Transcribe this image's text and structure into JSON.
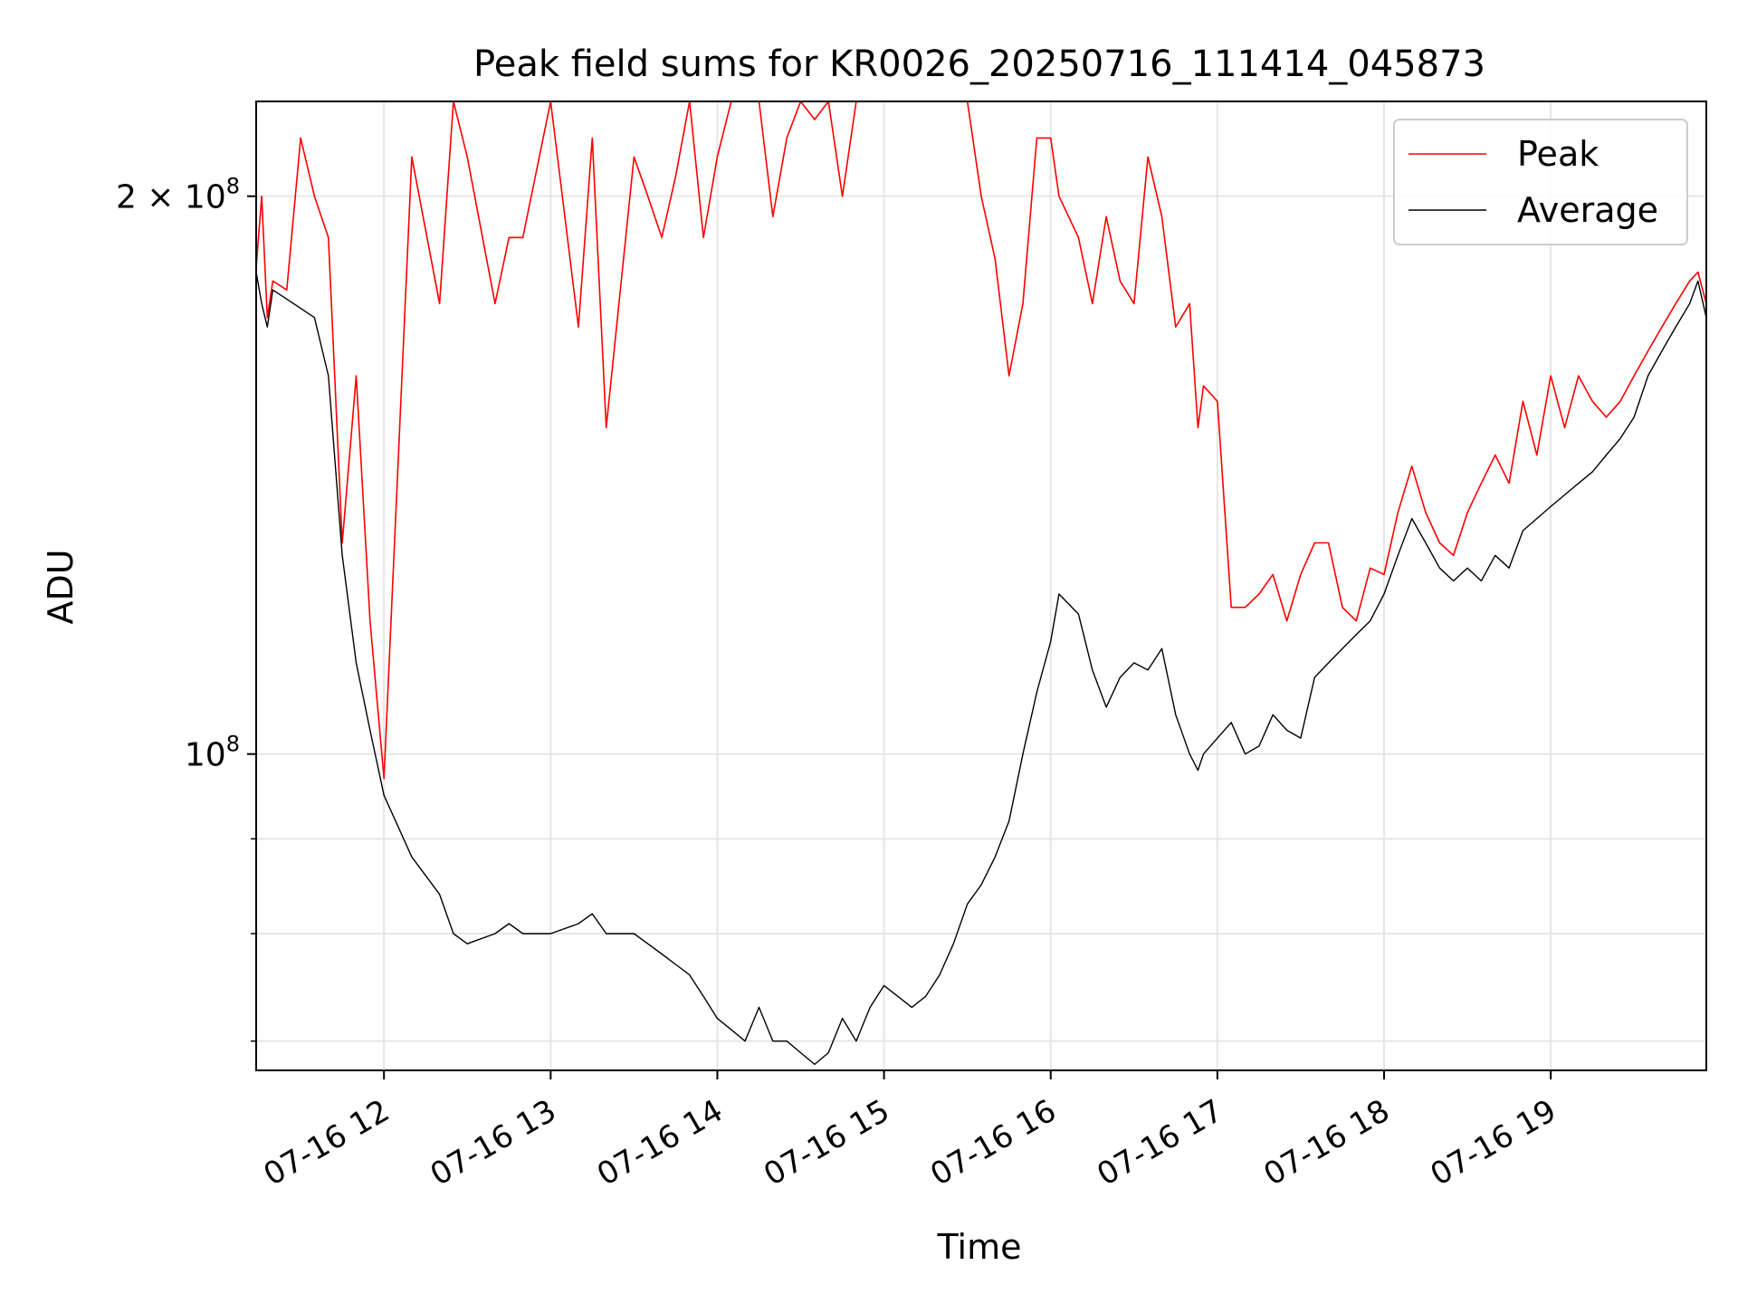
{
  "chart_data": {
    "type": "line",
    "title": "Peak field sums for KR0026_20250716_111414_045873",
    "xlabel": "Time",
    "ylabel": "ADU",
    "xlim": [
      "2025-07-16 11:14",
      "2025-07-16 19:56"
    ],
    "ylim": [
      67500000,
      225000000
    ],
    "y_scale": "log",
    "grid": true,
    "legend_position": "top-right",
    "x_ticks": [
      {
        "value": "2025-07-16 12:00",
        "label": "07-16 12"
      },
      {
        "value": "2025-07-16 13:00",
        "label": "07-16 13"
      },
      {
        "value": "2025-07-16 14:00",
        "label": "07-16 14"
      },
      {
        "value": "2025-07-16 15:00",
        "label": "07-16 15"
      },
      {
        "value": "2025-07-16 16:00",
        "label": "07-16 16"
      },
      {
        "value": "2025-07-16 17:00",
        "label": "07-16 17"
      },
      {
        "value": "2025-07-16 18:00",
        "label": "07-16 18"
      },
      {
        "value": "2025-07-16 19:00",
        "label": "07-16 19"
      }
    ],
    "y_ticks": [
      {
        "value": 100000000,
        "base": "10",
        "exp": "8"
      },
      {
        "value": 200000000,
        "base": "2 × 10",
        "exp": "8"
      }
    ],
    "y_minor_ticks": [
      70000000,
      80000000,
      90000000
    ],
    "series": [
      {
        "name": "Average",
        "color": "#000000",
        "x": [
          "2025-07-16 11:14",
          "2025-07-16 11:16",
          "2025-07-16 11:18",
          "2025-07-16 11:20",
          "2025-07-16 11:25",
          "2025-07-16 11:30",
          "2025-07-16 11:35",
          "2025-07-16 11:40",
          "2025-07-16 11:45",
          "2025-07-16 11:50",
          "2025-07-16 11:55",
          "2025-07-16 12:00",
          "2025-07-16 12:10",
          "2025-07-16 12:20",
          "2025-07-16 12:25",
          "2025-07-16 12:30",
          "2025-07-16 12:40",
          "2025-07-16 12:45",
          "2025-07-16 12:50",
          "2025-07-16 13:00",
          "2025-07-16 13:10",
          "2025-07-16 13:15",
          "2025-07-16 13:20",
          "2025-07-16 13:30",
          "2025-07-16 13:35",
          "2025-07-16 13:40",
          "2025-07-16 13:45",
          "2025-07-16 13:50",
          "2025-07-16 13:55",
          "2025-07-16 14:00",
          "2025-07-16 14:05",
          "2025-07-16 14:10",
          "2025-07-16 14:15",
          "2025-07-16 14:20",
          "2025-07-16 14:25",
          "2025-07-16 14:30",
          "2025-07-16 14:35",
          "2025-07-16 14:40",
          "2025-07-16 14:45",
          "2025-07-16 14:50",
          "2025-07-16 14:55",
          "2025-07-16 15:00",
          "2025-07-16 15:05",
          "2025-07-16 15:10",
          "2025-07-16 15:15",
          "2025-07-16 15:20",
          "2025-07-16 15:25",
          "2025-07-16 15:30",
          "2025-07-16 15:35",
          "2025-07-16 15:40",
          "2025-07-16 15:45",
          "2025-07-16 15:50",
          "2025-07-16 15:55",
          "2025-07-16 16:00",
          "2025-07-16 16:03",
          "2025-07-16 16:10",
          "2025-07-16 16:15",
          "2025-07-16 16:20",
          "2025-07-16 16:25",
          "2025-07-16 16:30",
          "2025-07-16 16:35",
          "2025-07-16 16:40",
          "2025-07-16 16:45",
          "2025-07-16 16:50",
          "2025-07-16 16:53",
          "2025-07-16 16:55",
          "2025-07-16 17:00",
          "2025-07-16 17:05",
          "2025-07-16 17:10",
          "2025-07-16 17:15",
          "2025-07-16 17:20",
          "2025-07-16 17:25",
          "2025-07-16 17:30",
          "2025-07-16 17:35",
          "2025-07-16 17:40",
          "2025-07-16 17:45",
          "2025-07-16 17:50",
          "2025-07-16 17:55",
          "2025-07-16 18:00",
          "2025-07-16 18:05",
          "2025-07-16 18:10",
          "2025-07-16 18:15",
          "2025-07-16 18:20",
          "2025-07-16 18:25",
          "2025-07-16 18:30",
          "2025-07-16 18:35",
          "2025-07-16 18:40",
          "2025-07-16 18:45",
          "2025-07-16 18:50",
          "2025-07-16 18:55",
          "2025-07-16 19:00",
          "2025-07-16 19:05",
          "2025-07-16 19:10",
          "2025-07-16 19:15",
          "2025-07-16 19:20",
          "2025-07-16 19:25",
          "2025-07-16 19:30",
          "2025-07-16 19:35",
          "2025-07-16 19:40",
          "2025-07-16 19:45",
          "2025-07-16 19:50",
          "2025-07-16 19:53",
          "2025-07-16 19:56"
        ],
        "values": [
          182000000,
          175000000,
          170000000,
          178000000,
          176000000,
          174000000,
          172000000,
          160000000,
          128000000,
          112000000,
          103000000,
          95000000,
          88000000,
          84000000,
          80000000,
          79000000,
          80000000,
          81000000,
          80000000,
          80000000,
          81000000,
          82000000,
          80000000,
          80000000,
          79000000,
          78000000,
          77000000,
          76000000,
          74000000,
          72000000,
          71000000,
          70000000,
          73000000,
          70000000,
          70000000,
          69000000,
          68000000,
          69000000,
          72000000,
          70000000,
          73000000,
          75000000,
          74000000,
          73000000,
          74000000,
          76000000,
          79000000,
          83000000,
          85000000,
          88000000,
          92000000,
          100000000,
          108000000,
          115000000,
          122000000,
          119000000,
          111000000,
          106000000,
          110000000,
          112000000,
          111000000,
          114000000,
          105000000,
          100000000,
          98000000,
          100000000,
          102000000,
          104000000,
          100000000,
          101000000,
          105000000,
          103000000,
          102000000,
          110000000,
          112000000,
          114000000,
          116000000,
          118000000,
          122000000,
          128000000,
          134000000,
          130000000,
          126000000,
          124000000,
          126000000,
          124000000,
          128000000,
          126000000,
          132000000,
          134000000,
          136000000,
          138000000,
          140000000,
          142000000,
          145000000,
          148000000,
          152000000,
          160000000,
          165000000,
          170000000,
          175000000,
          180000000,
          172000000
        ]
      },
      {
        "name": "Peak",
        "color": "#ff0000",
        "x": [
          "2025-07-16 11:14",
          "2025-07-16 11:16",
          "2025-07-16 11:18",
          "2025-07-16 11:20",
          "2025-07-16 11:25",
          "2025-07-16 11:30",
          "2025-07-16 11:35",
          "2025-07-16 11:40",
          "2025-07-16 11:45",
          "2025-07-16 11:50",
          "2025-07-16 11:55",
          "2025-07-16 12:00",
          "2025-07-16 12:10",
          "2025-07-16 12:20",
          "2025-07-16 12:25",
          "2025-07-16 12:30",
          "2025-07-16 12:40",
          "2025-07-16 12:45",
          "2025-07-16 12:50",
          "2025-07-16 13:00",
          "2025-07-16 13:10",
          "2025-07-16 13:15",
          "2025-07-16 13:20",
          "2025-07-16 13:30",
          "2025-07-16 13:35",
          "2025-07-16 13:40",
          "2025-07-16 13:45",
          "2025-07-16 13:50",
          "2025-07-16 13:55",
          "2025-07-16 14:00",
          "2025-07-16 14:05",
          "2025-07-16 14:10",
          "2025-07-16 14:15",
          "2025-07-16 14:20",
          "2025-07-16 14:25",
          "2025-07-16 14:30",
          "2025-07-16 14:35",
          "2025-07-16 14:40",
          "2025-07-16 14:45",
          "2025-07-16 14:50",
          "2025-07-16 14:55",
          "2025-07-16 15:00",
          "2025-07-16 15:05",
          "2025-07-16 15:10",
          "2025-07-16 15:15",
          "2025-07-16 15:20",
          "2025-07-16 15:25",
          "2025-07-16 15:30",
          "2025-07-16 15:35",
          "2025-07-16 15:40",
          "2025-07-16 15:45",
          "2025-07-16 15:50",
          "2025-07-16 15:55",
          "2025-07-16 16:00",
          "2025-07-16 16:03",
          "2025-07-16 16:10",
          "2025-07-16 16:15",
          "2025-07-16 16:20",
          "2025-07-16 16:25",
          "2025-07-16 16:30",
          "2025-07-16 16:35",
          "2025-07-16 16:40",
          "2025-07-16 16:45",
          "2025-07-16 16:50",
          "2025-07-16 16:53",
          "2025-07-16 16:55",
          "2025-07-16 17:00",
          "2025-07-16 17:05",
          "2025-07-16 17:10",
          "2025-07-16 17:15",
          "2025-07-16 17:20",
          "2025-07-16 17:25",
          "2025-07-16 17:30",
          "2025-07-16 17:35",
          "2025-07-16 17:40",
          "2025-07-16 17:45",
          "2025-07-16 17:50",
          "2025-07-16 17:55",
          "2025-07-16 18:00",
          "2025-07-16 18:05",
          "2025-07-16 18:10",
          "2025-07-16 18:15",
          "2025-07-16 18:20",
          "2025-07-16 18:25",
          "2025-07-16 18:30",
          "2025-07-16 18:35",
          "2025-07-16 18:40",
          "2025-07-16 18:45",
          "2025-07-16 18:50",
          "2025-07-16 18:55",
          "2025-07-16 19:00",
          "2025-07-16 19:05",
          "2025-07-16 19:10",
          "2025-07-16 19:15",
          "2025-07-16 19:20",
          "2025-07-16 19:25",
          "2025-07-16 19:30",
          "2025-07-16 19:35",
          "2025-07-16 19:40",
          "2025-07-16 19:45",
          "2025-07-16 19:50",
          "2025-07-16 19:53",
          "2025-07-16 19:56"
        ],
        "values": [
          183000000,
          200000000,
          172000000,
          180000000,
          178000000,
          215000000,
          200000000,
          190000000,
          130000000,
          160000000,
          118000000,
          97000000,
          210000000,
          175000000,
          225000000,
          210000000,
          175000000,
          190000000,
          190000000,
          225000000,
          170000000,
          215000000,
          150000000,
          210000000,
          200000000,
          190000000,
          205000000,
          225000000,
          190000000,
          210000000,
          225000000,
          225000000,
          225000000,
          195000000,
          215000000,
          225000000,
          220000000,
          225000000,
          200000000,
          225000000,
          225000000,
          225000000,
          225000000,
          225000000,
          225000000,
          225000000,
          225000000,
          225000000,
          200000000,
          185000000,
          160000000,
          175000000,
          215000000,
          215000000,
          200000000,
          190000000,
          175000000,
          195000000,
          180000000,
          175000000,
          210000000,
          195000000,
          170000000,
          175000000,
          150000000,
          158000000,
          155000000,
          120000000,
          120000000,
          122000000,
          125000000,
          118000000,
          125000000,
          130000000,
          130000000,
          120000000,
          118000000,
          126000000,
          125000000,
          135000000,
          143000000,
          135000000,
          130000000,
          128000000,
          135000000,
          140000000,
          145000000,
          140000000,
          155000000,
          145000000,
          160000000,
          150000000,
          160000000,
          155000000,
          152000000,
          155000000,
          160000000,
          165000000,
          170000000,
          175000000,
          180000000,
          182000000,
          175000000
        ]
      }
    ]
  }
}
